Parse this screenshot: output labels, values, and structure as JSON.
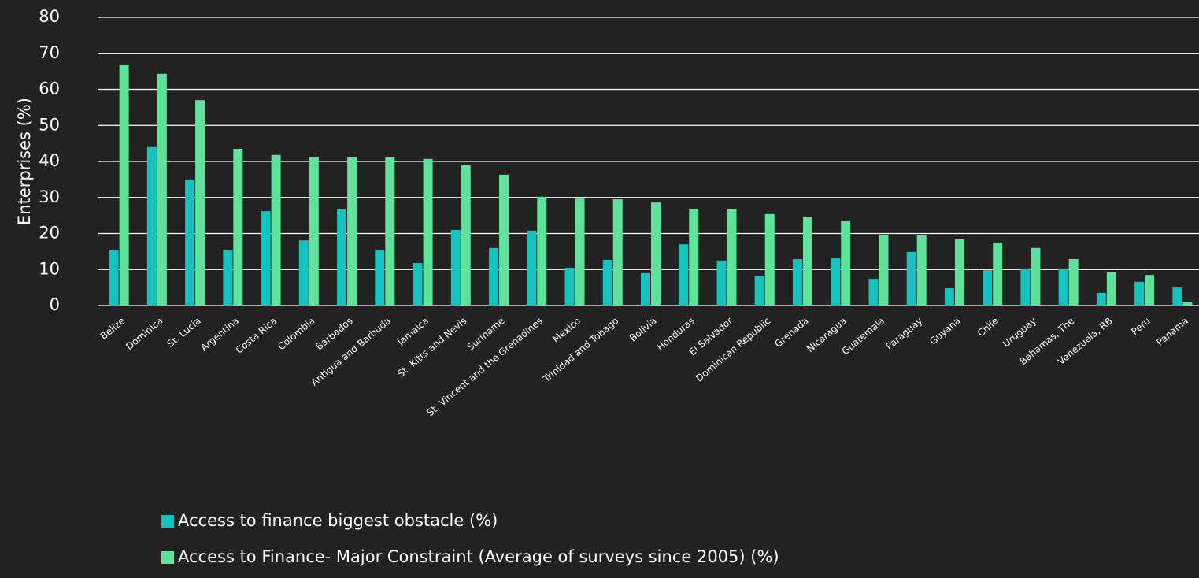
{
  "chart_data": {
    "type": "bar",
    "y_label": "Enterprises (%)",
    "categories": [
      "Belize",
      "Dominica",
      "St. Lucia",
      "Argentina",
      "Costa Rica",
      "Colombia",
      "Barbados",
      "Antigua and Barbuda",
      "Jamaica",
      "St. Kitts and Nevis",
      "Suriname",
      "St. Vincent and the Grenadines",
      "Mexico",
      "Trinidad and Tobago",
      "Bolivia",
      "Honduras",
      "El Salvador",
      "Dominican Republic",
      "Grenada",
      "Nicaragua",
      "Guatemala",
      "Paraguay",
      "Guyana",
      "Chile",
      "Uruguay",
      "Bahamas, The",
      "Venezuela, RB",
      "Peru",
      "Panama"
    ],
    "series": [
      {
        "name": "Access to finance biggest obstacle (%)",
        "color": "#14c3be",
        "values": [
          15.5,
          44,
          35,
          15.3,
          26.2,
          18.1,
          26.7,
          15.3,
          11.8,
          21,
          16,
          20.8,
          10.5,
          12.7,
          9,
          17,
          12.5,
          8.3,
          12.9,
          13.1,
          7.4,
          14.9,
          4.8,
          9.8,
          10.3,
          10.3,
          3.5,
          6.6,
          5
        ]
      },
      {
        "name": "Access to Finance- Major Constraint (Average of surveys since 2005) (%)",
        "color": "#5fe39a",
        "values": [
          66.9,
          64.3,
          57,
          43.5,
          41.8,
          41.3,
          41.1,
          41.1,
          40.7,
          38.9,
          36.3,
          30.2,
          29.7,
          29.5,
          28.6,
          26.9,
          26.7,
          25.4,
          24.5,
          23.4,
          19.7,
          19.5,
          18.4,
          17.5,
          16,
          12.9,
          9.2,
          8.5,
          1.1
        ]
      }
    ],
    "ylim": [
      0,
      80
    ],
    "yticks": [
      0,
      10,
      20,
      30,
      40,
      50,
      60,
      70,
      80
    ],
    "grid": true
  }
}
